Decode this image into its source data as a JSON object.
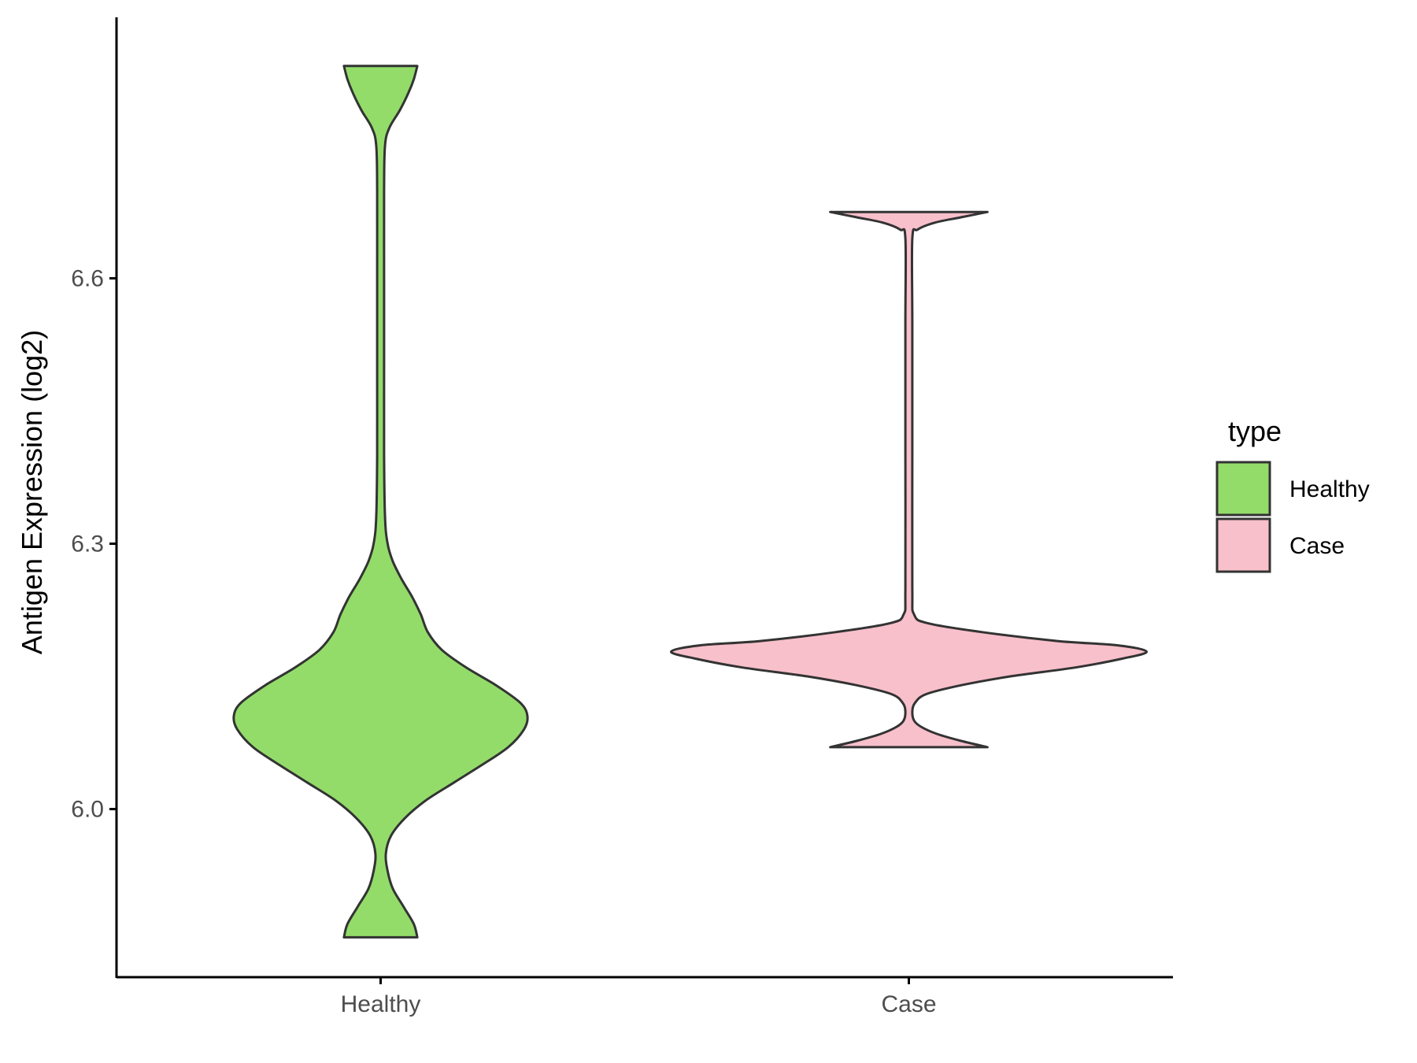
{
  "chart_data": {
    "type": "violin",
    "title": "",
    "xlabel": "",
    "ylabel": "Antigen Expression (log2)",
    "categories": [
      "Healthy",
      "Case"
    ],
    "ylim": [
      5.81,
      6.895
    ],
    "yticks": [
      6.0,
      6.3,
      6.6
    ],
    "ytick_labels": [
      "6.0",
      "6.3",
      "6.6"
    ],
    "grid": false,
    "legend": {
      "title": "type",
      "position": "right",
      "entries": [
        {
          "label": "Healthy",
          "color": "#93DC6A"
        },
        {
          "label": "Case",
          "color": "#F8C0CB"
        }
      ]
    },
    "series": [
      {
        "category": "Healthy",
        "color": "#93DC6A",
        "min": 5.855,
        "max": 6.84,
        "density": [
          [
            5.855,
            0.21
          ],
          [
            5.87,
            0.19
          ],
          [
            5.89,
            0.13
          ],
          [
            5.91,
            0.07
          ],
          [
            5.93,
            0.04
          ],
          [
            5.95,
            0.03
          ],
          [
            5.97,
            0.06
          ],
          [
            5.99,
            0.14
          ],
          [
            6.01,
            0.26
          ],
          [
            6.03,
            0.42
          ],
          [
            6.05,
            0.58
          ],
          [
            6.07,
            0.73
          ],
          [
            6.09,
            0.82
          ],
          [
            6.105,
            0.84
          ],
          [
            6.12,
            0.8
          ],
          [
            6.14,
            0.66
          ],
          [
            6.16,
            0.49
          ],
          [
            6.18,
            0.35
          ],
          [
            6.2,
            0.27
          ],
          [
            6.22,
            0.23
          ],
          [
            6.24,
            0.18
          ],
          [
            6.26,
            0.12
          ],
          [
            6.28,
            0.07
          ],
          [
            6.3,
            0.04
          ],
          [
            6.33,
            0.025
          ],
          [
            6.4,
            0.02
          ],
          [
            6.5,
            0.02
          ],
          [
            6.6,
            0.02
          ],
          [
            6.7,
            0.02
          ],
          [
            6.75,
            0.025
          ],
          [
            6.77,
            0.05
          ],
          [
            6.79,
            0.11
          ],
          [
            6.81,
            0.16
          ],
          [
            6.825,
            0.19
          ],
          [
            6.84,
            0.21
          ]
        ]
      },
      {
        "category": "Case",
        "color": "#F8C0CB",
        "min": 6.07,
        "max": 6.675,
        "density": [
          [
            6.07,
            0.45
          ],
          [
            6.077,
            0.3
          ],
          [
            6.085,
            0.16
          ],
          [
            6.093,
            0.07
          ],
          [
            6.1,
            0.03
          ],
          [
            6.11,
            0.02
          ],
          [
            6.12,
            0.035
          ],
          [
            6.13,
            0.1
          ],
          [
            6.14,
            0.3
          ],
          [
            6.15,
            0.58
          ],
          [
            6.16,
            0.95
          ],
          [
            6.17,
            1.22
          ],
          [
            6.178,
            1.36
          ],
          [
            6.185,
            1.2
          ],
          [
            6.19,
            0.85
          ],
          [
            6.2,
            0.42
          ],
          [
            6.21,
            0.11
          ],
          [
            6.22,
            0.03
          ],
          [
            6.25,
            0.02
          ],
          [
            6.4,
            0.02
          ],
          [
            6.55,
            0.02
          ],
          [
            6.645,
            0.02
          ],
          [
            6.655,
            0.05
          ],
          [
            6.663,
            0.15
          ],
          [
            6.669,
            0.3
          ],
          [
            6.675,
            0.45
          ]
        ]
      }
    ]
  }
}
